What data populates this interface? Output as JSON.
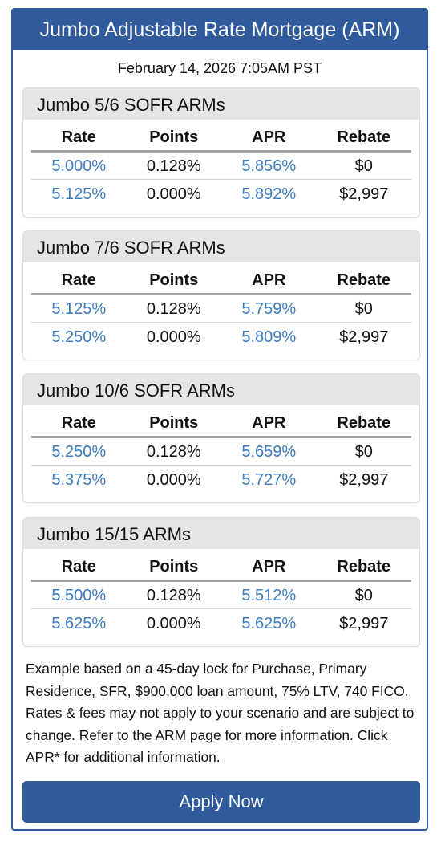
{
  "header": {
    "title": "Jumbo Adjustable Rate Mortgage (ARM)"
  },
  "timestamp": "February 14, 2026 7:05AM PST",
  "columns": [
    "Rate",
    "Points",
    "APR",
    "Rebate"
  ],
  "products": [
    {
      "title": "Jumbo 5/6 SOFR ARMs",
      "rows": [
        {
          "rate": "5.000%",
          "points": "0.128%",
          "apr": "5.856%",
          "rebate": "$0"
        },
        {
          "rate": "5.125%",
          "points": "0.000%",
          "apr": "5.892%",
          "rebate": "$2,997"
        }
      ]
    },
    {
      "title": "Jumbo 7/6 SOFR ARMs",
      "rows": [
        {
          "rate": "5.125%",
          "points": "0.128%",
          "apr": "5.759%",
          "rebate": "$0"
        },
        {
          "rate": "5.250%",
          "points": "0.000%",
          "apr": "5.809%",
          "rebate": "$2,997"
        }
      ]
    },
    {
      "title": "Jumbo 10/6 SOFR ARMs",
      "rows": [
        {
          "rate": "5.250%",
          "points": "0.128%",
          "apr": "5.659%",
          "rebate": "$0"
        },
        {
          "rate": "5.375%",
          "points": "0.000%",
          "apr": "5.727%",
          "rebate": "$2,997"
        }
      ]
    },
    {
      "title": "Jumbo 15/15 ARMs",
      "rows": [
        {
          "rate": "5.500%",
          "points": "0.128%",
          "apr": "5.512%",
          "rebate": "$0"
        },
        {
          "rate": "5.625%",
          "points": "0.000%",
          "apr": "5.625%",
          "rebate": "$2,997"
        }
      ]
    }
  ],
  "disclaimer": "Example based on a 45-day lock for Purchase, Primary Residence, SFR, $900,000 loan amount, 75% LTV, 740 FICO.  Rates & fees may not apply to your scenario and are subject to change.  Refer to the ARM page for more information. Click APR* for additional information.",
  "apply_button": {
    "label": "Apply Now"
  },
  "colors": {
    "brand": "#2f5b9c",
    "link": "#3b7cc0",
    "card_header": "#e5e5e5"
  }
}
